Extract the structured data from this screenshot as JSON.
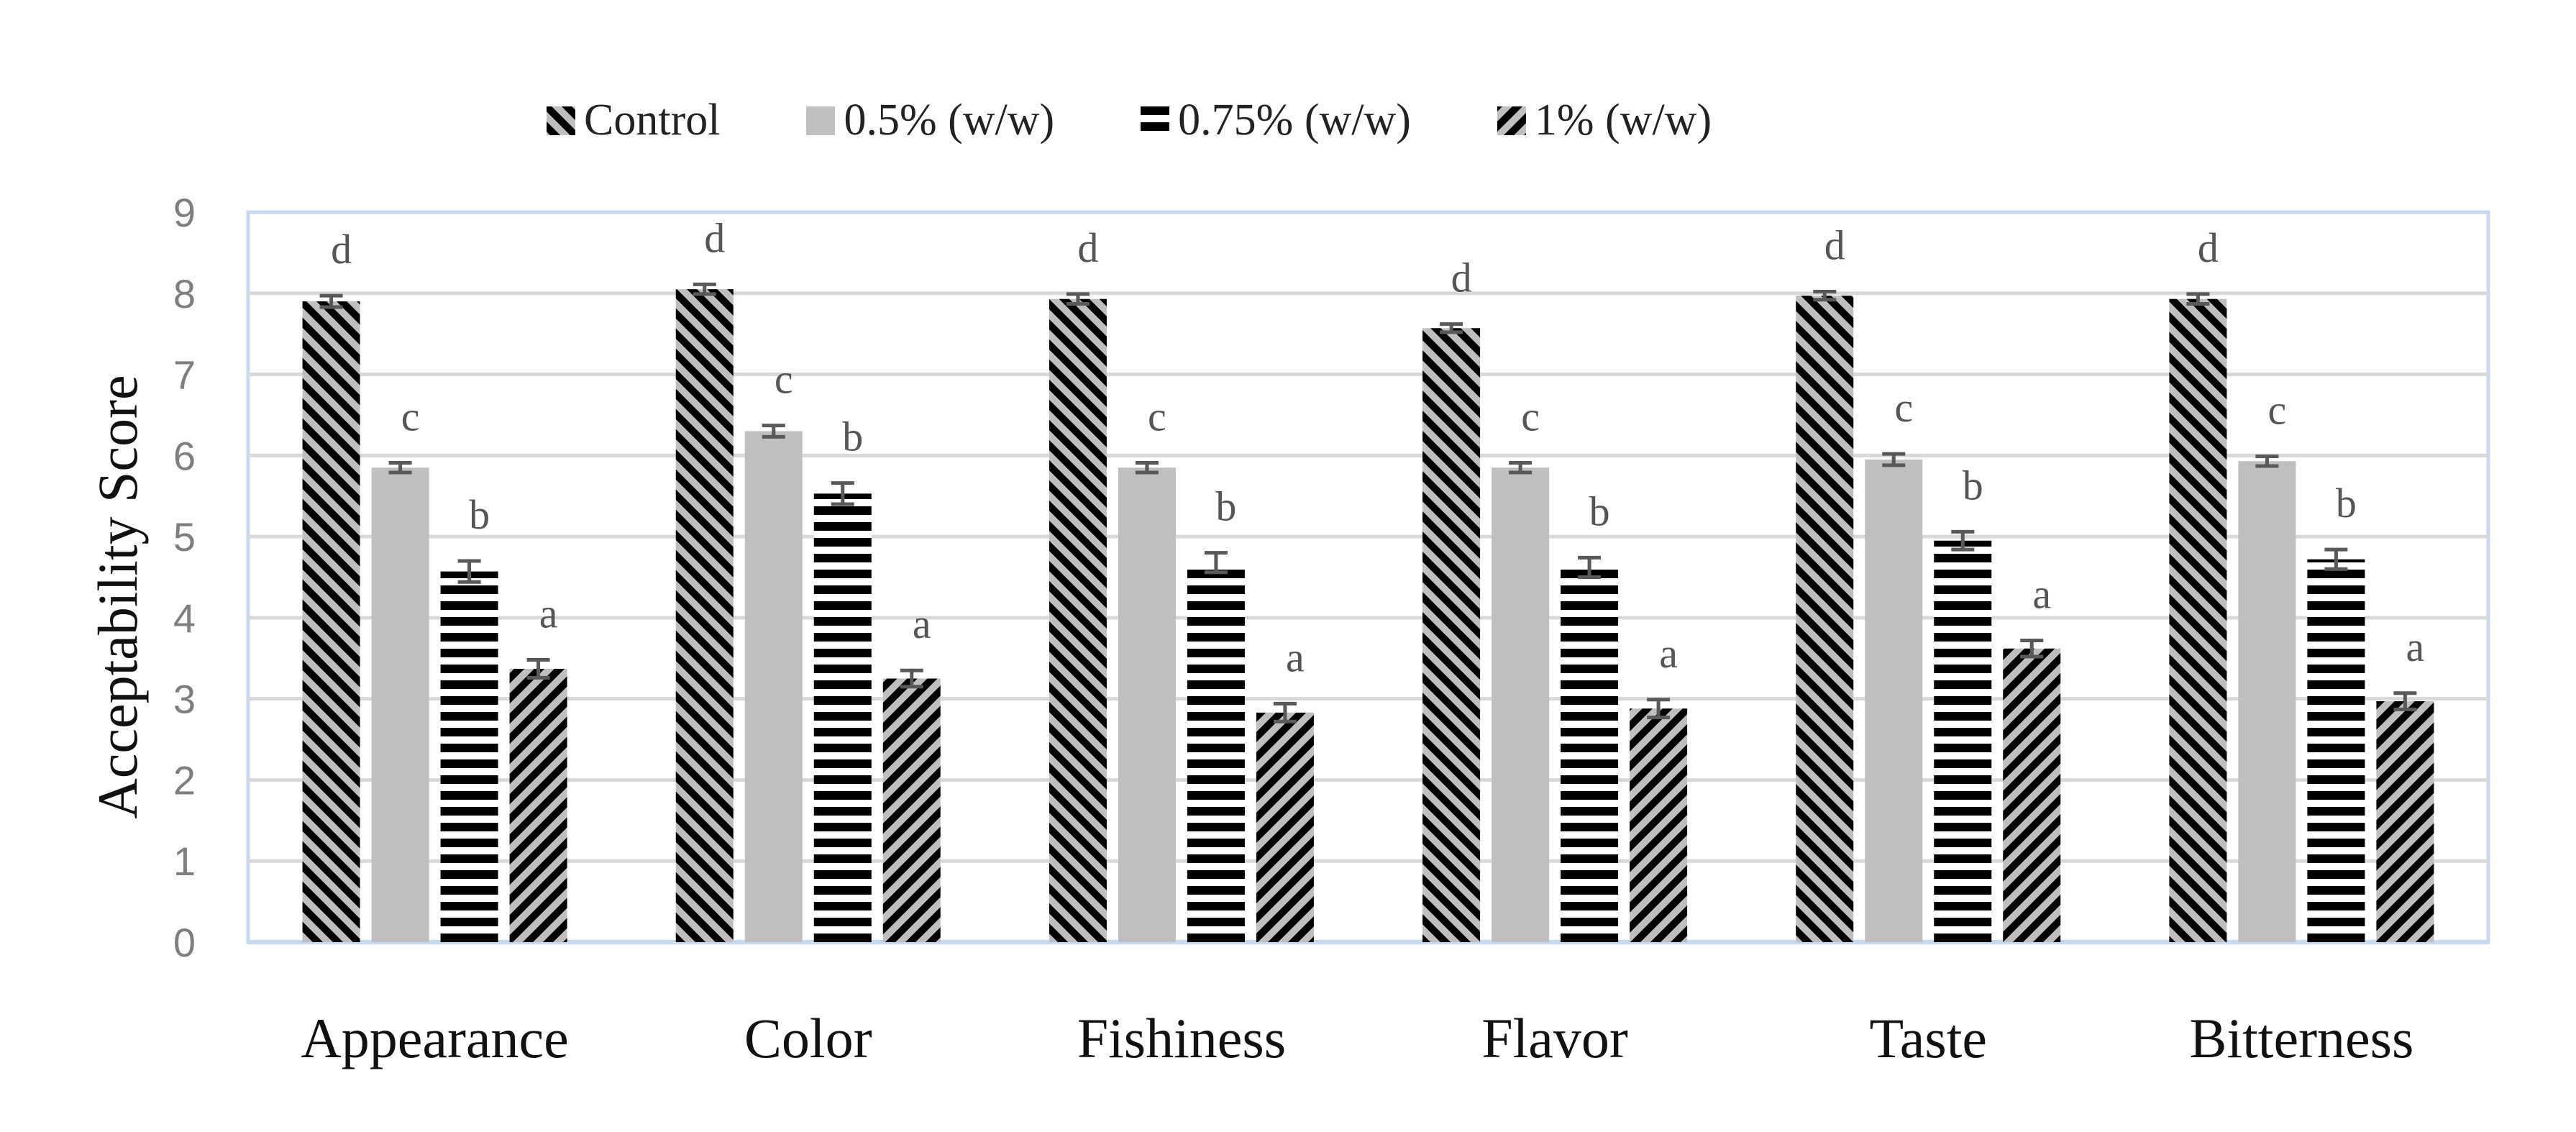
{
  "chart_data": {
    "type": "bar",
    "title": "",
    "xlabel": "",
    "ylabel": "Acceptability Score",
    "ylim": [
      0,
      9
    ],
    "yticks": [
      "0",
      "1",
      "2",
      "3",
      "4",
      "5",
      "6",
      "7",
      "8",
      "9"
    ],
    "categories": [
      "Appearance",
      "Color",
      "Fishiness",
      "Flavor",
      "Taste",
      "Bitterness"
    ],
    "series": [
      {
        "name": "Control",
        "pattern": "diag-down",
        "values": [
          7.9,
          8.05,
          7.93,
          7.57,
          7.97,
          7.93
        ],
        "errors": [
          0.07,
          0.06,
          0.06,
          0.05,
          0.05,
          0.06
        ],
        "letters": [
          "d",
          "d",
          "d",
          "d",
          "d",
          "d"
        ]
      },
      {
        "name": "0.5% (w/w)",
        "pattern": "solid-gray",
        "values": [
          5.85,
          6.3,
          5.85,
          5.85,
          5.95,
          5.93
        ],
        "errors": [
          0.06,
          0.07,
          0.06,
          0.06,
          0.07,
          0.06
        ],
        "letters": [
          "c",
          "c",
          "c",
          "c",
          "c",
          "c"
        ]
      },
      {
        "name": "0.75% (w/w)",
        "pattern": "horizontal-stripes",
        "values": [
          4.57,
          5.53,
          4.68,
          4.62,
          4.95,
          4.72
        ],
        "errors": [
          0.13,
          0.13,
          0.12,
          0.12,
          0.11,
          0.12
        ],
        "letters": [
          "b",
          "b",
          "b",
          "b",
          "b",
          "b"
        ]
      },
      {
        "name": "1% (w/w)",
        "pattern": "diag-up",
        "values": [
          3.37,
          3.25,
          2.83,
          2.88,
          3.62,
          2.97
        ],
        "errors": [
          0.11,
          0.1,
          0.11,
          0.11,
          0.1,
          0.1
        ],
        "letters": [
          "a",
          "a",
          "a",
          "a",
          "a",
          "a"
        ]
      }
    ],
    "legend_position": "top",
    "grid": true,
    "colors": {
      "bar_light": "#bfbfbf",
      "bar_dark": "#000000",
      "grid": "#d9d9d9",
      "axis": "#c6d9f0",
      "error": "#595959"
    }
  }
}
